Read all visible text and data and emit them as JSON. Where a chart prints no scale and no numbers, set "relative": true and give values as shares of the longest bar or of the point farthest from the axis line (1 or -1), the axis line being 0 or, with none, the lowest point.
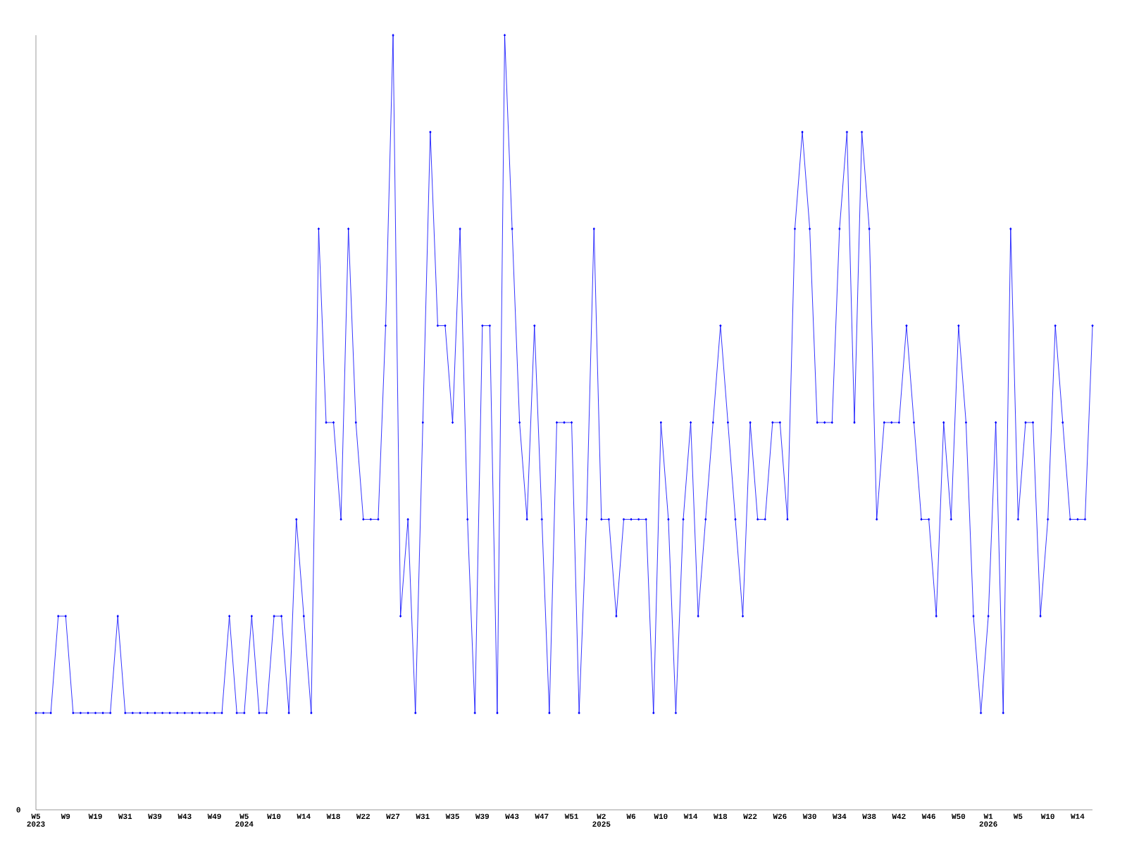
{
  "chart_data": {
    "type": "line",
    "relative": true,
    "color": "#0000ff",
    "marker": "diamond",
    "annotations": [
      "0"
    ],
    "categories": [
      "W5 2023",
      null,
      null,
      null,
      "W9",
      null,
      null,
      null,
      "W19",
      null,
      null,
      null,
      "W31",
      null,
      null,
      null,
      "W39",
      null,
      null,
      null,
      "W43",
      null,
      null,
      null,
      "W49",
      null,
      null,
      null,
      "W5 2024",
      null,
      null,
      null,
      "W10",
      null,
      null,
      null,
      "W14",
      null,
      null,
      null,
      "W18",
      null,
      null,
      null,
      "W22",
      null,
      null,
      null,
      "W27",
      null,
      null,
      null,
      "W31",
      null,
      null,
      null,
      "W35",
      null,
      null,
      null,
      "W39",
      null,
      null,
      null,
      "W43",
      null,
      null,
      null,
      "W47",
      null,
      null,
      null,
      "W51",
      null,
      null,
      null,
      "W2 2025",
      null,
      null,
      null,
      "W6",
      null,
      null,
      null,
      "W10",
      null,
      null,
      null,
      "W14",
      null,
      null,
      null,
      "W18",
      null,
      null,
      null,
      "W22",
      null,
      null,
      null,
      "W26",
      null,
      null,
      null,
      "W30",
      null,
      null,
      null,
      "W34",
      null,
      null,
      null,
      "W38",
      null,
      null,
      null,
      "W42",
      null,
      null,
      null,
      "W46",
      null,
      null,
      null,
      "W50",
      null,
      null,
      null,
      "W1 2026",
      null,
      null,
      null,
      "W5",
      null,
      null,
      null,
      "W10",
      null,
      null,
      null,
      "W14",
      null,
      null
    ],
    "values": [
      0.125,
      0.125,
      0.125,
      0.25,
      0.25,
      0.125,
      0.125,
      0.125,
      0.125,
      0.125,
      0.125,
      0.25,
      0.125,
      0.125,
      0.125,
      0.125,
      0.125,
      0.125,
      0.125,
      0.125,
      0.125,
      0.125,
      0.125,
      0.125,
      0.125,
      0.125,
      0.25,
      0.125,
      0.125,
      0.25,
      0.125,
      0.125,
      0.25,
      0.25,
      0.125,
      0.375,
      0.25,
      0.125,
      0.75,
      0.5,
      0.5,
      0.375,
      0.75,
      0.5,
      0.375,
      0.375,
      0.375,
      0.625,
      1,
      0.25,
      0.375,
      0.125,
      0.5,
      0.875,
      0.625,
      0.625,
      0.5,
      0.75,
      0.375,
      0.125,
      0.625,
      0.625,
      0.125,
      1,
      0.75,
      0.5,
      0.375,
      0.625,
      0.375,
      0.125,
      0.5,
      0.5,
      0.5,
      0.125,
      0.375,
      0.75,
      0.375,
      0.375,
      0.25,
      0.375,
      0.375,
      0.375,
      0.375,
      0.125,
      0.5,
      0.375,
      0.125,
      0.375,
      0.5,
      0.25,
      0.375,
      0.5,
      0.625,
      0.5,
      0.375,
      0.25,
      0.5,
      0.375,
      0.375,
      0.5,
      0.5,
      0.375,
      0.75,
      0.875,
      0.75,
      0.5,
      0.5,
      0.5,
      0.75,
      0.875,
      0.5,
      0.875,
      0.75,
      0.375,
      0.5,
      0.5,
      0.5,
      0.625,
      0.5,
      0.375,
      0.375,
      0.25,
      0.5,
      0.375,
      0.625,
      0.5,
      0.25,
      0.125,
      0.25,
      0.5,
      0.125,
      0.75,
      0.375,
      0.5,
      0.5,
      0.25,
      0.375,
      0.625,
      0.5,
      0.375,
      0.375,
      0.375,
      0.625
    ]
  }
}
